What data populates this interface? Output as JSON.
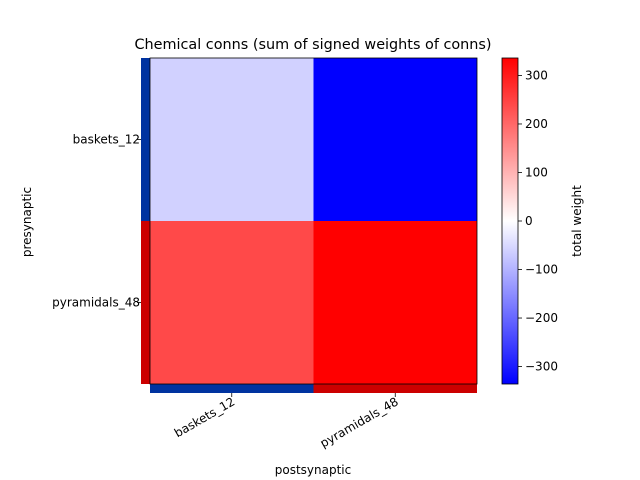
{
  "chart_data": {
    "type": "heatmap",
    "title": "Chemical conns (sum of signed weights of conns)",
    "xlabel": "postsynaptic",
    "ylabel": "presynaptic",
    "x_categories": [
      "baskets_12",
      "pyramidals_48"
    ],
    "y_categories": [
      "baskets_12",
      "pyramidals_48"
    ],
    "values": [
      [
        -60,
        -336
      ],
      [
        240,
        336
      ]
    ],
    "color_range": [
      -336,
      336
    ],
    "colormap": "bwr",
    "colorbar": {
      "label": "total weight",
      "ticks": [
        -300,
        -200,
        -100,
        0,
        100,
        200,
        300
      ],
      "tick_labels": [
        "−300",
        "−200",
        "−100",
        "0",
        "100",
        "200",
        "300"
      ]
    },
    "population_colors": {
      "baskets_12": "#0033a0",
      "pyramidals_48": "#cc0000"
    }
  }
}
